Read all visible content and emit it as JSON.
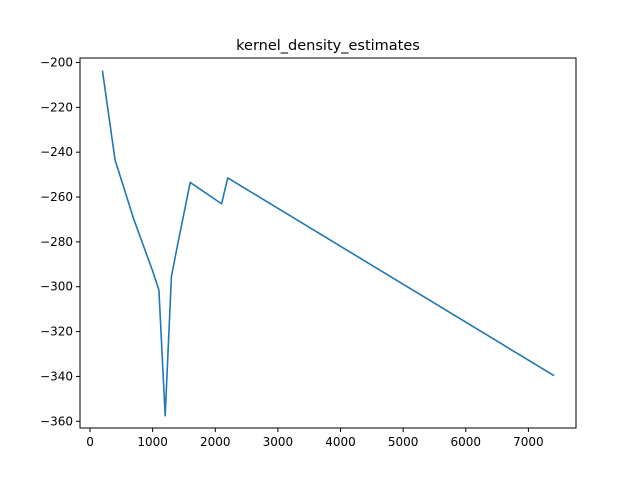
{
  "chart_data": {
    "type": "line",
    "title": "kernel_density_estimates",
    "xlabel": "",
    "ylabel": "",
    "xlim": [
      -160,
      7760
    ],
    "ylim": [
      -363,
      -198
    ],
    "x_ticks": [
      0,
      1000,
      2000,
      3000,
      4000,
      5000,
      6000,
      7000
    ],
    "y_ticks": [
      -360,
      -340,
      -320,
      -300,
      -280,
      -260,
      -240,
      -220,
      -200
    ],
    "x_tick_labels": [
      "0",
      "1000",
      "2000",
      "3000",
      "4000",
      "5000",
      "6000",
      "7000"
    ],
    "y_tick_labels": [
      "−360",
      "−340",
      "−320",
      "−300",
      "−280",
      "−260",
      "−240",
      "−220",
      "−200"
    ],
    "grid": false,
    "legend": "none",
    "series": [
      {
        "color": "#1f77b4",
        "x": [
          200,
          400,
          700,
          1000,
          1100,
          1200,
          1300,
          1400,
          1600,
          2100,
          2200,
          7400
        ],
        "y": [
          -204,
          -243.5,
          -270,
          -293,
          -301.5,
          -357.5,
          -295.5,
          -281,
          -253.5,
          -263,
          -251.5,
          -339.5
        ]
      }
    ]
  }
}
